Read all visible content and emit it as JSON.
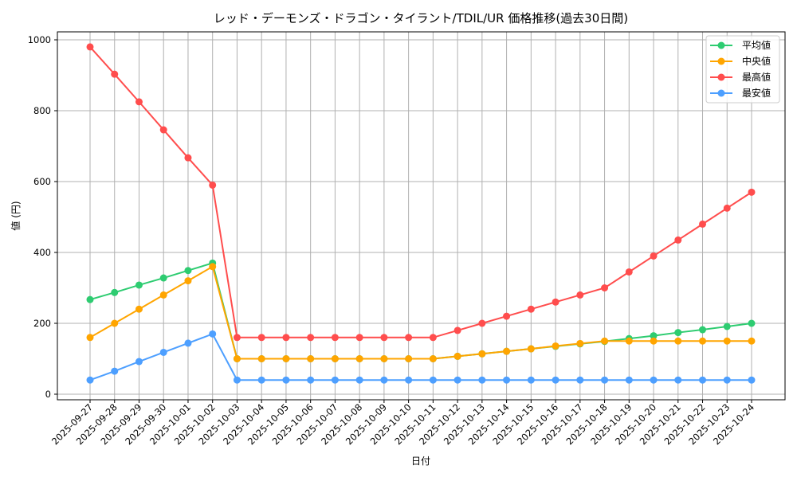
{
  "chart_data": {
    "type": "line",
    "title": "レッド・デーモンズ・ドラゴン・タイラント/TDIL/UR 価格推移(過去30日間)",
    "xlabel": "日付",
    "ylabel": "値 (円)",
    "ylim": [
      0,
      1000
    ],
    "yticks": [
      0,
      200,
      400,
      600,
      800,
      1000
    ],
    "grid": true,
    "legend_position": "top-right",
    "x": [
      "2025-09-27",
      "2025-09-28",
      "2025-09-29",
      "2025-09-30",
      "2025-10-01",
      "2025-10-02",
      "2025-10-03",
      "2025-10-04",
      "2025-10-05",
      "2025-10-06",
      "2025-10-07",
      "2025-10-08",
      "2025-10-09",
      "2025-10-10",
      "2025-10-11",
      "2025-10-12",
      "2025-10-13",
      "2025-10-14",
      "2025-10-15",
      "2025-10-16",
      "2025-10-17",
      "2025-10-18",
      "2025-10-19",
      "2025-10-20",
      "2025-10-21",
      "2025-10-22",
      "2025-10-23",
      "2025-10-24"
    ],
    "series": [
      {
        "name": "平均値",
        "color": "#2ecc71",
        "values": [
          267,
          287,
          308,
          328,
          349,
          370,
          100,
          100,
          100,
          100,
          100,
          100,
          100,
          100,
          100,
          107,
          114,
          121,
          128,
          135,
          142,
          149,
          157,
          165,
          174,
          182,
          191,
          200
        ]
      },
      {
        "name": "中央値",
        "color": "#ffa500",
        "values": [
          160,
          200,
          240,
          280,
          320,
          360,
          100,
          100,
          100,
          100,
          100,
          100,
          100,
          100,
          100,
          107,
          114,
          121,
          128,
          136,
          143,
          150,
          150,
          150,
          150,
          150,
          150,
          150
        ]
      },
      {
        "name": "最高値",
        "color": "#ff4d4d",
        "values": [
          980,
          903,
          825,
          746,
          667,
          590,
          160,
          160,
          160,
          160,
          160,
          160,
          160,
          160,
          160,
          180,
          200,
          220,
          240,
          260,
          280,
          300,
          345,
          390,
          435,
          480,
          525,
          570
        ]
      },
      {
        "name": "最安値",
        "color": "#4d9fff",
        "values": [
          40,
          65,
          92,
          118,
          144,
          170,
          40,
          40,
          40,
          40,
          40,
          40,
          40,
          40,
          40,
          40,
          40,
          40,
          40,
          40,
          40,
          40,
          40,
          40,
          40,
          40,
          40,
          40
        ]
      }
    ]
  }
}
